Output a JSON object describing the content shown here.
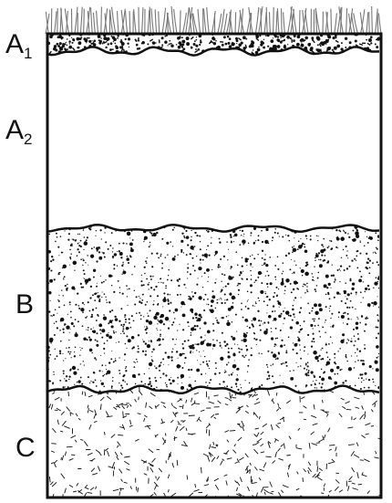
{
  "diagram": {
    "horizons": [
      {
        "id": "a1",
        "label": "A",
        "subscript": "1"
      },
      {
        "id": "a2",
        "label": "A",
        "subscript": "2"
      },
      {
        "id": "b",
        "label": "B",
        "subscript": ""
      },
      {
        "id": "c",
        "label": "C",
        "subscript": ""
      }
    ],
    "colors": {
      "ink": "#111111",
      "background": "#ffffff",
      "grass": "#777777"
    }
  }
}
